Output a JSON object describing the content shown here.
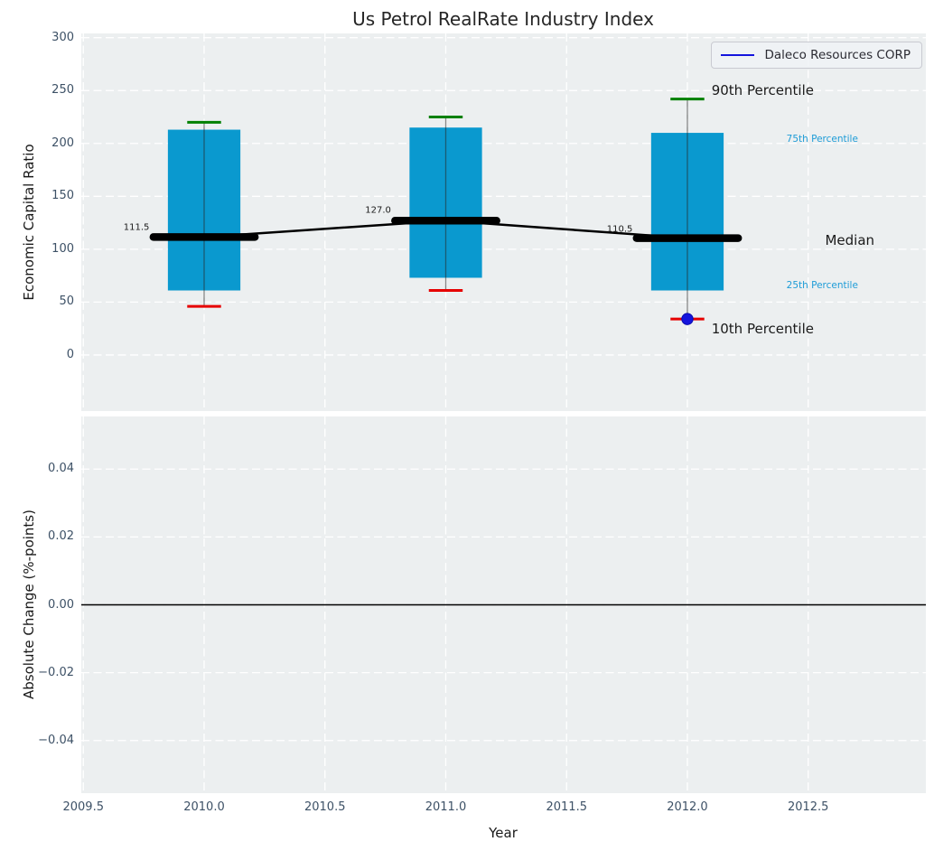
{
  "title": "Us Petrol RealRate Industry Index",
  "legend": {
    "items": [
      {
        "label": "Daleco Resources CORP",
        "line_color": "#1414dd"
      }
    ]
  },
  "x_axis": {
    "label": "Year",
    "ticks": [
      "2009.5",
      "2010.0",
      "2010.5",
      "2011.0",
      "2011.5",
      "2012.0",
      "2012.5"
    ],
    "tick_values": [
      2009.5,
      2010.0,
      2010.5,
      2011.0,
      2011.5,
      2012.0,
      2012.5
    ],
    "xlim": [
      2009.4916,
      2012.987
    ]
  },
  "chart_data": [
    {
      "type": "bar",
      "name": "economic-capital-ratio-percentile-boxes",
      "title": "Us Petrol RealRate Industry Index",
      "ylabel": "Economic Capital Ratio",
      "yticks": [
        "0",
        "50",
        "100",
        "150",
        "200",
        "250",
        "300"
      ],
      "ytick_values": [
        0,
        50,
        100,
        150,
        200,
        250,
        300
      ],
      "ylim": [
        -53,
        304
      ],
      "grid": "white dashed, horizontal and vertical",
      "legend_position": "upper right",
      "categories": [
        2010,
        2011,
        2012
      ],
      "series": [
        {
          "name": "90th Percentile",
          "values": [
            220,
            225,
            242
          ]
        },
        {
          "name": "75th Percentile",
          "values": [
            213,
            215,
            210
          ]
        },
        {
          "name": "Median",
          "values": [
            111.5,
            127.0,
            110.5
          ]
        },
        {
          "name": "25th Percentile",
          "values": [
            61,
            73,
            61
          ]
        },
        {
          "name": "10th Percentile",
          "values": [
            46,
            61,
            34
          ]
        }
      ],
      "company_series": {
        "name": "Daleco Resources CORP",
        "points": [
          {
            "x": 2012,
            "y": 34
          }
        ]
      },
      "median_labels": [
        {
          "text": "111.5",
          "x": 2009.72,
          "y": 120
        },
        {
          "text": "127.0",
          "x": 2010.72,
          "y": 137
        },
        {
          "text": "110.5",
          "x": 2011.72,
          "y": 119
        }
      ],
      "annotations": [
        {
          "text": "90th Percentile",
          "x": 2012.1,
          "y": 250,
          "size": 15,
          "color": "#1a1a1a",
          "ha": "left"
        },
        {
          "text": "75th Percentile",
          "x": 2012.41,
          "y": 204,
          "size": 10.5,
          "color": "#1e9cd7",
          "ha": "left"
        },
        {
          "text": "Median",
          "x": 2012.57,
          "y": 108,
          "size": 15,
          "color": "#1a1a1a",
          "ha": "left"
        },
        {
          "text": "25th Percentile",
          "x": 2012.41,
          "y": 66,
          "size": 10.5,
          "color": "#1e9cd7",
          "ha": "left"
        },
        {
          "text": "10th Percentile",
          "x": 2012.1,
          "y": 25,
          "size": 15,
          "color": "#1a1a1a",
          "ha": "left"
        }
      ],
      "colors": {
        "bar": "#0a99cf",
        "p90_cap": "#008000",
        "p10_cap": "#e60000",
        "median_line": "#000000",
        "whisker": "rgba(40,40,40,0.55)",
        "company_marker": "#1414dd"
      }
    },
    {
      "type": "line",
      "name": "absolute-change",
      "ylabel": "Absolute Change (%-points)",
      "yticks": [
        "0.04",
        "0.02",
        "0.00",
        "−0.02",
        "−0.04"
      ],
      "ytick_values": [
        0.04,
        0.02,
        0.0,
        -0.02,
        -0.04
      ],
      "ylim": [
        -0.0555,
        0.0555
      ],
      "zero_line": 0.0,
      "series": []
    }
  ],
  "styles": {
    "plot_bg": "#eceff0",
    "grid_color": "#ffffff",
    "tick_color": "#3d5166",
    "text_color": "#1a1a1a",
    "title_color": "#262626"
  }
}
